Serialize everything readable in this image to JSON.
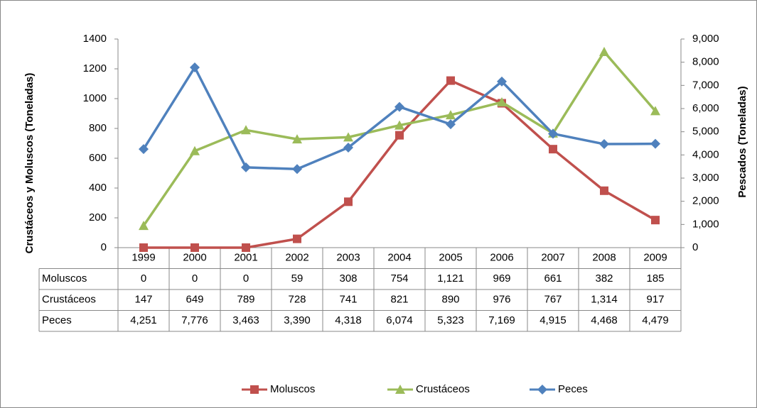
{
  "chart_data": {
    "type": "line",
    "y_label": "Crustáceos y Moluscos (Toneladas)",
    "y2_label": "Pescados (Toneladas)",
    "categories": [
      "1999",
      "2000",
      "2001",
      "2002",
      "2003",
      "2004",
      "2005",
      "2006",
      "2007",
      "2008",
      "2009"
    ],
    "series": [
      {
        "name": "Moluscos",
        "color": "#c0504d",
        "marker": "square",
        "values": [
          0,
          0,
          0,
          59,
          308,
          754,
          1121,
          969,
          661,
          382,
          185
        ],
        "value_labels": [
          "0",
          "0",
          "0",
          "59",
          "308",
          "754",
          "1,121",
          "969",
          "661",
          "382",
          "185"
        ]
      },
      {
        "name": "Crustáceos",
        "color": "#9bbb59",
        "marker": "triangle",
        "values": [
          147,
          649,
          789,
          728,
          741,
          821,
          890,
          976,
          767,
          1314,
          917
        ],
        "value_labels": [
          "147",
          "649",
          "789",
          "728",
          "741",
          "821",
          "890",
          "976",
          "767",
          "1,314",
          "917"
        ]
      },
      {
        "name": "Peces",
        "color": "#4f81bd",
        "marker": "diamond",
        "axis": "y2",
        "values": [
          4251,
          7776,
          3463,
          3390,
          4318,
          6074,
          5323,
          7169,
          4915,
          4468,
          4479
        ],
        "value_labels": [
          "4,251",
          "7,776",
          "3,463",
          "3,390",
          "4,318",
          "6,074",
          "5,323",
          "7,169",
          "4,915",
          "4,468",
          "4,479"
        ]
      }
    ],
    "ylim": [
      0,
      1400
    ],
    "yticks": [
      0,
      200,
      400,
      600,
      800,
      1000,
      1200,
      1400
    ],
    "y2lim": [
      0,
      9000
    ],
    "y2ticks": [
      0,
      {
        "value": 1000,
        "label": "1,000"
      },
      {
        "value": 2000,
        "label": "2,000"
      },
      {
        "value": 3000,
        "label": "3,000"
      },
      {
        "value": 4000,
        "label": "4,000"
      },
      {
        "value": 5000,
        "label": "5,000"
      },
      {
        "value": 6000,
        "label": "6,000"
      },
      {
        "value": 7000,
        "label": "7,000"
      },
      {
        "value": 8000,
        "label": "8,000"
      },
      {
        "value": 9000,
        "label": "9,000"
      }
    ],
    "grid": false,
    "legend": "bottom"
  }
}
